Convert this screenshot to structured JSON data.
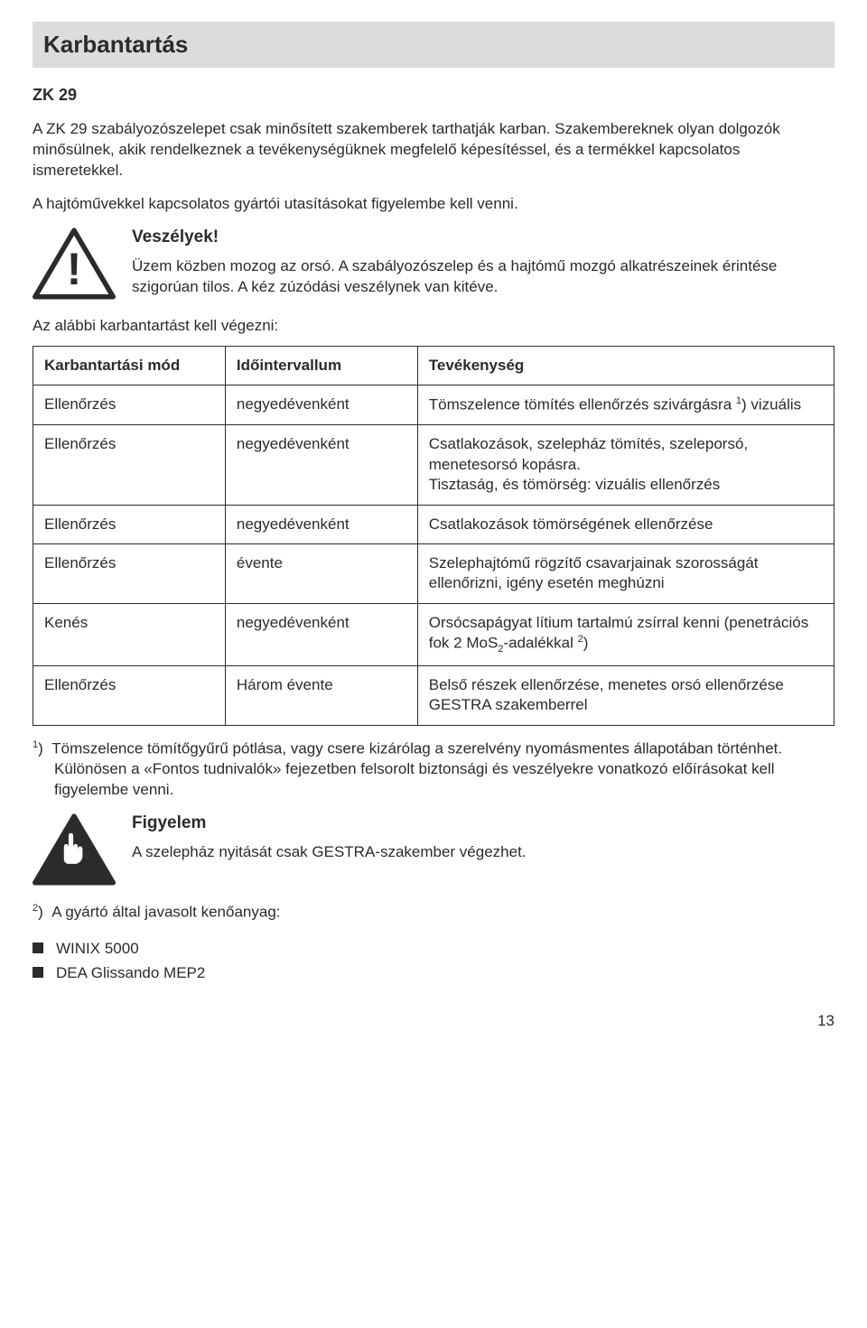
{
  "title": "Karbantartás",
  "subhead": "ZK 29",
  "intro_paras": [
    "A ZK 29 szabályozószelepet csak minősített szakemberek tarthatják karban. Szakembereknek olyan dolgozók minősülnek, akik rendelkeznek a tevékenységüknek megfelelő képesítéssel, és a termékkel kapcsolatos ismeretekkel.",
    "A hajtóművekkel kapcsolatos gyártói utasításokat figyelembe kell venni."
  ],
  "warning": {
    "heading": "Veszélyek!",
    "text": "Üzem közben mozog az orsó. A szabályozószelep és a hajtómű mozgó alkatrészeinek érintése szigorúan tilos. A kéz zúzódási veszélynek van kitéve."
  },
  "pre_table_text": "Az alábbi karbantartást kell végezni:",
  "table": {
    "columns": [
      "Karbantartási mód",
      "Időintervallum",
      "Tevékenység"
    ],
    "col_widths": [
      "24%",
      "24%",
      "52%"
    ],
    "rows": [
      [
        "Ellenőrzés",
        "negyedévenként",
        "Tömszelence tömítés ellenőrzés szivárgásra <span class=\"sup\">1</span>) vizuális"
      ],
      [
        "Ellenőrzés",
        "negyedévenként",
        "Csatlakozások, szelepház tömítés, szeleporsó, menetesorsó kopásra.<br>Tisztaság, és tömörség: vizuális ellenőrzés"
      ],
      [
        "Ellenőrzés",
        "negyedévenként",
        "Csatlakozások tömörségének ellenőrzése"
      ],
      [
        "Ellenőrzés",
        "évente",
        "Szelephajtómű rögzítő csavarjainak szorosságát ellenőrizni, igény esetén meghúzni"
      ],
      [
        "Kenés",
        "negyedévenként",
        "Orsócsapágyat lítium tartalmú zsírral kenni (penetrációs fok 2 MoS<span class=\"sub\">2</span>-adalékkal <span class=\"sup\">2</span>)"
      ],
      [
        "Ellenőrzés",
        "Három évente",
        "Belső részek ellenőrzése, menetes orsó ellenőrzése GESTRA szakemberrel"
      ]
    ]
  },
  "footnote1": "<span class=\"sup\">1</span>)&nbsp;&nbsp;Tömszelence tömítőgyűrű pótlása, vagy csere kizárólag a szerelvény nyomásmentes állapotában történhet. Különösen a «Fontos tudnivalók» fejezetben felsorolt biztonsági és veszélyekre vonatkozó előírásokat kell figyelembe venni.",
  "attention": {
    "heading": "Figyelem",
    "text": "A szelepház nyitását csak GESTRA-szakember végezhet."
  },
  "footnote2_lead": "<span class=\"sup\">2</span>)&nbsp;&nbsp;A gyártó által javasolt kenőanyag:",
  "lubricants": [
    "WINIX 5000",
    "DEA Glissando MEP2"
  ],
  "page_number": "13"
}
